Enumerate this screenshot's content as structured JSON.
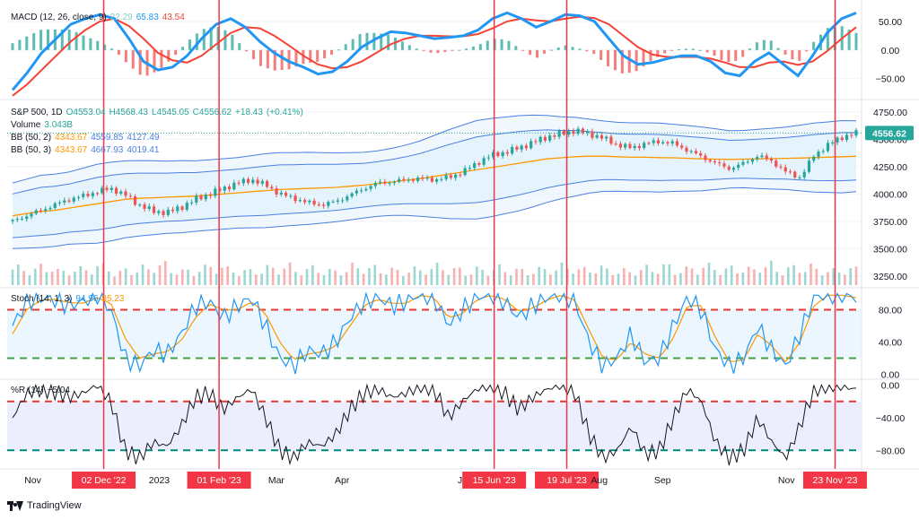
{
  "brand": {
    "name": "TradingView",
    "logo": "tradingview-logo-icon"
  },
  "colors": {
    "up": "#26a69a",
    "down": "#ef5350",
    "macd_line": "#2196f3",
    "signal_line": "#f44336",
    "bb_mid": "#ff9800",
    "bb_band": "#4a7fe0",
    "bb_fill": "#e3f2fd",
    "stoch_k": "#2196f3",
    "stoch_d": "#ff9800",
    "wr_line": "#131722",
    "highlight": "#f23645",
    "grid": "#f0f3fa",
    "text": "#131722",
    "price_badge": "#26a69a"
  },
  "chart_data": [
    {
      "type": "line",
      "name": "MACD",
      "legend": {
        "title": "MACD (12, 26, close, 9)",
        "hist": "22.29",
        "macd": "65.83",
        "signal": "43.54"
      },
      "ylim": [
        -85,
        75
      ],
      "y_ticks": [
        "50.00",
        "0.00",
        "−50.00"
      ],
      "y_tick_values": [
        50,
        0,
        -50
      ],
      "series": [
        {
          "name": "MACD",
          "values": [
            -70,
            -40,
            -5,
            20,
            45,
            55,
            62,
            55,
            20,
            -20,
            -35,
            -30,
            -10,
            20,
            45,
            55,
            40,
            15,
            -5,
            -20,
            -30,
            -42,
            -38,
            -20,
            5,
            20,
            32,
            30,
            25,
            20,
            22,
            25,
            35,
            55,
            65,
            55,
            40,
            50,
            62,
            60,
            50,
            20,
            -10,
            -25,
            -22,
            -15,
            -10,
            -10,
            -20,
            -40,
            -45,
            -20,
            -5,
            -25,
            -45,
            -10,
            30,
            55,
            65
          ]
        },
        {
          "name": "Signal",
          "values": [
            -80,
            -60,
            -35,
            -10,
            15,
            35,
            50,
            55,
            42,
            20,
            -5,
            -18,
            -22,
            -10,
            10,
            30,
            40,
            38,
            25,
            8,
            -10,
            -25,
            -32,
            -30,
            -20,
            -5,
            10,
            20,
            25,
            25,
            24,
            24,
            28,
            38,
            50,
            55,
            52,
            50,
            55,
            58,
            56,
            45,
            25,
            5,
            -8,
            -12,
            -12,
            -12,
            -15,
            -22,
            -30,
            -30,
            -22,
            -20,
            -26,
            -20,
            -2,
            20,
            40
          ]
        }
      ]
    },
    {
      "type": "candlestick",
      "name": "S&P 500",
      "legend": {
        "symbol": "S&P 500, 1D",
        "ohlc": {
          "open": "4553.04",
          "high": "4568.43",
          "low": "4545.05",
          "close": "4556.62",
          "change": "+18.43",
          "change_pct": "(+0.41%)"
        },
        "volume_label": "Volume",
        "volume_value": "3.043B",
        "bb1_label": "BB (50, 2)",
        "bb1_mid": "4343.67",
        "bb1_upper": "4559.85",
        "bb1_lower": "4127.49",
        "bb2_label": "BB (50, 3)",
        "bb2_mid": "4343.67",
        "bb2_upper": "4667.93",
        "bb2_lower": "4019.41"
      },
      "last_price": 4556.62,
      "last_price_label": "4556.62",
      "ylim": [
        3150,
        4830
      ],
      "y_ticks": [
        "4750.00",
        "4500.00",
        "4250.00",
        "4000.00",
        "3750.00",
        "3500.00",
        "3250.00"
      ],
      "y_tick_values": [
        4750,
        4500,
        4250,
        4000,
        3750,
        3500,
        3250
      ],
      "close": [
        3750,
        3800,
        3850,
        3900,
        3950,
        3980,
        4020,
        4050,
        3990,
        3900,
        3840,
        3830,
        3880,
        3950,
        4000,
        4050,
        4100,
        4130,
        4080,
        4000,
        3960,
        3920,
        3900,
        3930,
        3990,
        4050,
        4100,
        4110,
        4130,
        4140,
        4130,
        4150,
        4200,
        4280,
        4350,
        4380,
        4420,
        4470,
        4520,
        4550,
        4580,
        4550,
        4510,
        4450,
        4420,
        4460,
        4480,
        4460,
        4400,
        4340,
        4280,
        4230,
        4280,
        4350,
        4300,
        4200,
        4150,
        4350,
        4450,
        4520,
        4556
      ],
      "bb_mid": [
        3800,
        3820,
        3840,
        3850,
        3870,
        3890,
        3910,
        3930,
        3950,
        3960,
        3965,
        3970,
        3975,
        3980,
        3990,
        4000,
        4010,
        4020,
        4030,
        4040,
        4045,
        4050,
        4055,
        4060,
        4070,
        4080,
        4095,
        4110,
        4125,
        4140,
        4160,
        4180,
        4200,
        4220,
        4240,
        4260,
        4280,
        4300,
        4320,
        4330,
        4340,
        4345,
        4345,
        4340,
        4335,
        4335,
        4332,
        4330,
        4325,
        4320,
        4318,
        4315,
        4318,
        4320,
        4322,
        4325,
        4328,
        4332,
        4336,
        4340,
        4344
      ],
      "bb_inner_width": [
        200,
        210,
        220,
        220,
        220,
        230,
        240,
        240,
        235,
        230,
        225,
        220,
        220,
        215,
        215,
        215,
        215,
        220,
        225,
        225,
        222,
        220,
        215,
        210,
        205,
        200,
        200,
        205,
        215,
        230,
        250,
        270,
        285,
        300,
        300,
        295,
        290,
        280,
        265,
        250,
        240,
        225,
        215,
        210,
        210,
        210,
        210,
        205,
        200,
        195,
        185,
        175,
        175,
        180,
        185,
        190,
        200,
        210,
        215,
        220,
        216
      ],
      "bb_outer_width": [
        300,
        315,
        330,
        330,
        330,
        345,
        360,
        360,
        352,
        345,
        338,
        330,
        330,
        322,
        322,
        322,
        322,
        330,
        338,
        338,
        333,
        330,
        322,
        315,
        307,
        300,
        300,
        307,
        322,
        345,
        375,
        405,
        428,
        450,
        450,
        442,
        435,
        420,
        398,
        375,
        360,
        338,
        322,
        315,
        315,
        315,
        315,
        307,
        300,
        292,
        278,
        262,
        262,
        270,
        278,
        285,
        300,
        315,
        322,
        330,
        324
      ],
      "volume_heights": [
        0.55,
        0.5,
        0.6,
        0.45,
        0.5,
        0.55,
        0.6,
        0.4,
        0.5,
        0.55,
        0.65,
        0.5,
        0.45,
        0.55,
        0.6,
        0.5,
        0.45,
        0.5,
        0.55,
        0.6,
        0.5,
        0.55,
        0.45,
        0.5,
        0.6,
        0.55,
        0.5,
        0.45,
        0.5,
        0.55,
        0.6,
        0.5,
        0.45,
        0.5,
        0.55,
        0.5,
        0.45,
        0.5,
        0.55,
        0.6,
        0.5,
        0.55,
        0.5,
        0.45,
        0.5,
        0.55,
        0.6,
        0.5,
        0.55,
        0.6,
        0.5,
        0.55,
        0.5,
        0.65,
        0.5,
        0.55,
        0.6,
        0.5,
        0.45,
        0.55,
        0.5
      ]
    },
    {
      "type": "line",
      "name": "Stochastic",
      "legend": {
        "title": "Stoch (14, 1, 3)",
        "k": "94.96",
        "d": "95.23"
      },
      "ylim": [
        -5,
        105
      ],
      "y_ticks": [
        "80.00",
        "40.00",
        "0.00"
      ],
      "y_tick_values": [
        80,
        40,
        0
      ],
      "levels": [
        80,
        20
      ],
      "series": [
        {
          "name": "%K",
          "values": [
            60,
            90,
            95,
            92,
            85,
            90,
            100,
            80,
            20,
            10,
            30,
            25,
            50,
            85,
            90,
            70,
            85,
            95,
            60,
            20,
            10,
            30,
            25,
            40,
            70,
            90,
            95,
            85,
            90,
            100,
            95,
            60,
            80,
            95,
            100,
            90,
            70,
            85,
            95,
            100,
            90,
            40,
            10,
            20,
            50,
            15,
            20,
            60,
            95,
            80,
            30,
            10,
            20,
            60,
            30,
            10,
            50,
            95,
            100,
            98,
            95
          ]
        },
        {
          "name": "%D",
          "values": [
            50,
            80,
            92,
            93,
            89,
            88,
            95,
            88,
            45,
            20,
            25,
            28,
            42,
            70,
            87,
            80,
            80,
            90,
            75,
            40,
            18,
            25,
            28,
            35,
            60,
            85,
            93,
            88,
            88,
            98,
            95,
            70,
            75,
            92,
            98,
            93,
            78,
            82,
            92,
            98,
            92,
            55,
            20,
            18,
            40,
            25,
            20,
            45,
            85,
            85,
            45,
            15,
            18,
            50,
            35,
            15,
            40,
            85,
            98,
            98,
            95
          ]
        }
      ]
    },
    {
      "type": "line",
      "name": "Williams %R",
      "legend": {
        "title": "%R (14)",
        "value": "−5.04"
      },
      "ylim": [
        -105,
        5
      ],
      "y_ticks": [
        "0.00",
        "−40.00",
        "−80.00"
      ],
      "y_tick_values": [
        0,
        -40,
        -80
      ],
      "levels": [
        -20,
        -80
      ],
      "values": [
        -40,
        -10,
        -5,
        -8,
        -15,
        -10,
        0,
        -20,
        -80,
        -90,
        -70,
        -75,
        -50,
        -15,
        -10,
        -30,
        -15,
        -5,
        -40,
        -80,
        -90,
        -70,
        -75,
        -60,
        -30,
        -10,
        -5,
        -15,
        -10,
        0,
        -5,
        -40,
        -20,
        -5,
        0,
        -10,
        -30,
        -15,
        -5,
        0,
        -10,
        -60,
        -90,
        -80,
        -50,
        -85,
        -80,
        -40,
        -5,
        -20,
        -70,
        -90,
        -80,
        -40,
        -70,
        -90,
        -50,
        -5,
        0,
        -2,
        -5
      ]
    }
  ],
  "x_axis": {
    "labels": [
      {
        "text": "Nov",
        "frac": 0.03,
        "highlight": false
      },
      {
        "text": "02 Dec '22",
        "frac": 0.113,
        "highlight": true
      },
      {
        "text": "2023",
        "frac": 0.178,
        "highlight": false
      },
      {
        "text": "01 Feb '23",
        "frac": 0.248,
        "highlight": true
      },
      {
        "text": "Mar",
        "frac": 0.315,
        "highlight": false
      },
      {
        "text": "Apr",
        "frac": 0.392,
        "highlight": false
      },
      {
        "text": "Ju",
        "frac": 0.533,
        "highlight": false
      },
      {
        "text": "15 Jun '23",
        "frac": 0.57,
        "highlight": true
      },
      {
        "text": "19 Jul '23",
        "frac": 0.655,
        "highlight": true
      },
      {
        "text": "Aug",
        "frac": 0.693,
        "highlight": false
      },
      {
        "text": "Sep",
        "frac": 0.767,
        "highlight": false
      },
      {
        "text": "Nov",
        "frac": 0.912,
        "highlight": false
      },
      {
        "text": "23 Nov '23",
        "frac": 0.969,
        "highlight": true
      }
    ]
  }
}
